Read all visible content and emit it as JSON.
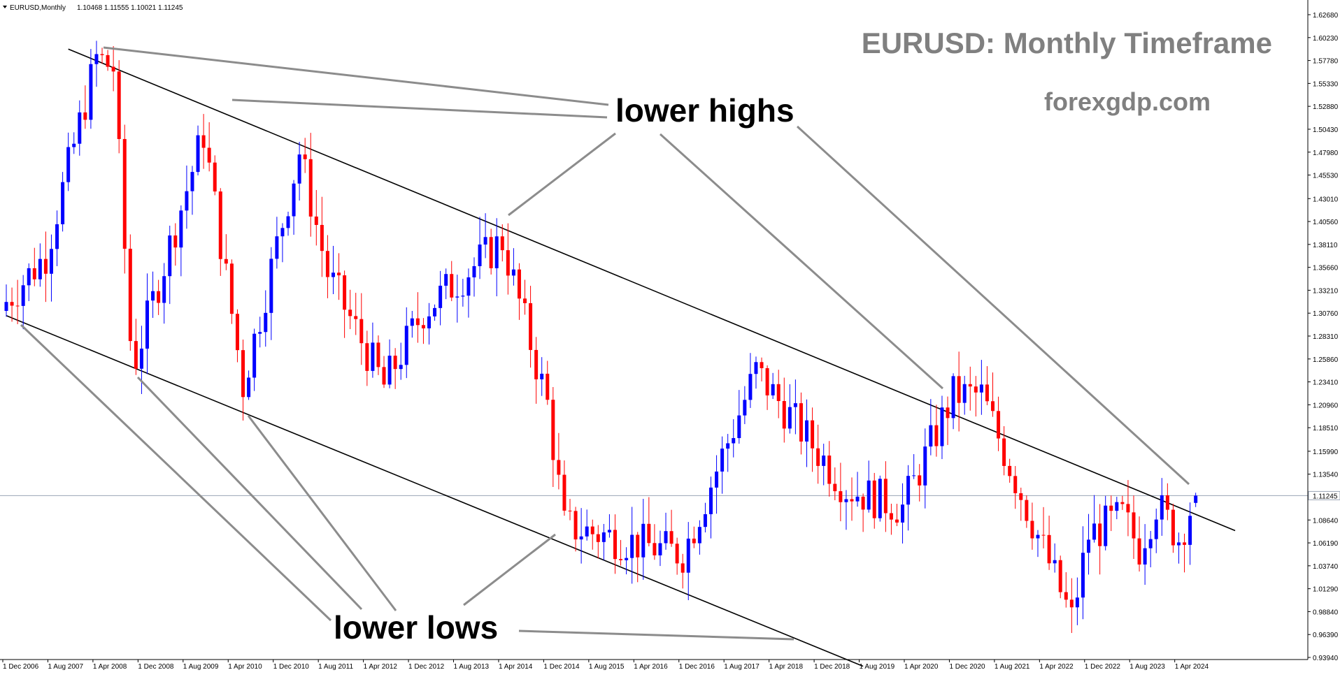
{
  "header": {
    "symbol": "EURUSD,Monthly",
    "ohlc": "1.10468 1.11555 1.10021 1.11245"
  },
  "chart_data": {
    "type": "candlestick",
    "title": "EURUSD: Monthly Timeframe",
    "watermark": "forexgdp.com",
    "annotations": [
      "lower highs",
      "lower lows"
    ],
    "current_price": 1.11245,
    "current_price_label": "1.11245",
    "ylim": [
      0.9364,
      1.6378
    ],
    "y_ticks": [
      "1.62680",
      "1.60230",
      "1.57780",
      "1.55330",
      "1.52880",
      "1.50430",
      "1.47980",
      "1.45530",
      "1.43010",
      "1.40560",
      "1.38110",
      "1.35660",
      "1.33210",
      "1.30760",
      "1.28310",
      "1.25860",
      "1.23410",
      "1.20960",
      "1.18510",
      "1.15990",
      "1.13540",
      "1.11245",
      "1.08640",
      "1.06190",
      "1.03740",
      "1.01290",
      "0.98840",
      "0.96390",
      "0.93940"
    ],
    "x_ticks": [
      "1 Dec 2006",
      "1 Aug 2007",
      "1 Apr 2008",
      "1 Dec 2008",
      "1 Aug 2009",
      "1 Apr 2010",
      "1 Dec 2010",
      "1 Aug 2011",
      "1 Apr 2012",
      "1 Dec 2012",
      "1 Aug 2013",
      "1 Apr 2014",
      "1 Dec 2014",
      "1 Aug 2015",
      "1 Apr 2016",
      "1 Dec 2016",
      "1 Aug 2017",
      "1 Apr 2018",
      "1 Dec 2018",
      "1 Aug 2019",
      "1 Apr 2020",
      "1 Dec 2020",
      "1 Aug 2021",
      "1 Apr 2022",
      "1 Dec 2022",
      "1 Aug 2023",
      "1 Apr 2024"
    ],
    "candle_anchors": [
      [
        "2006-12",
        1.32
      ],
      [
        "2007-07",
        1.37
      ],
      [
        "2008-04",
        1.58
      ],
      [
        "2008-07",
        1.57
      ],
      [
        "2008-10",
        1.28
      ],
      [
        "2008-11",
        1.26
      ],
      [
        "2009-11",
        1.5
      ],
      [
        "2010-06",
        1.23
      ],
      [
        "2011-04",
        1.48
      ],
      [
        "2011-09",
        1.35
      ],
      [
        "2012-07",
        1.23
      ],
      [
        "2013-02",
        1.31
      ],
      [
        "2014-04",
        1.385
      ],
      [
        "2014-12",
        1.21
      ],
      [
        "2015-03",
        1.08
      ],
      [
        "2016-12",
        1.05
      ],
      [
        "2018-01",
        1.245
      ],
      [
        "2019-05",
        1.12
      ],
      [
        "2020-03",
        1.1
      ],
      [
        "2020-12",
        1.22
      ],
      [
        "2021-05",
        1.22
      ],
      [
        "2022-09",
        0.98
      ],
      [
        "2022-12",
        1.07
      ],
      [
        "2023-06",
        1.09
      ],
      [
        "2023-09",
        1.057
      ],
      [
        "2023-12",
        1.104
      ],
      [
        "2024-04",
        1.067
      ],
      [
        "2024-07",
        1.11245
      ]
    ],
    "trendlines": {
      "upper": [
        [
          "2007-11",
          1.59
        ],
        [
          "2024-07",
          1.11
        ],
        [
          "2025-02",
          1.075
        ]
      ],
      "lower": [
        [
          "2006-12",
          1.305
        ],
        [
          "2008-12",
          1.25
        ],
        [
          "2014-12",
          1.08
        ],
        [
          "2019-08",
          0.93
        ]
      ]
    }
  }
}
